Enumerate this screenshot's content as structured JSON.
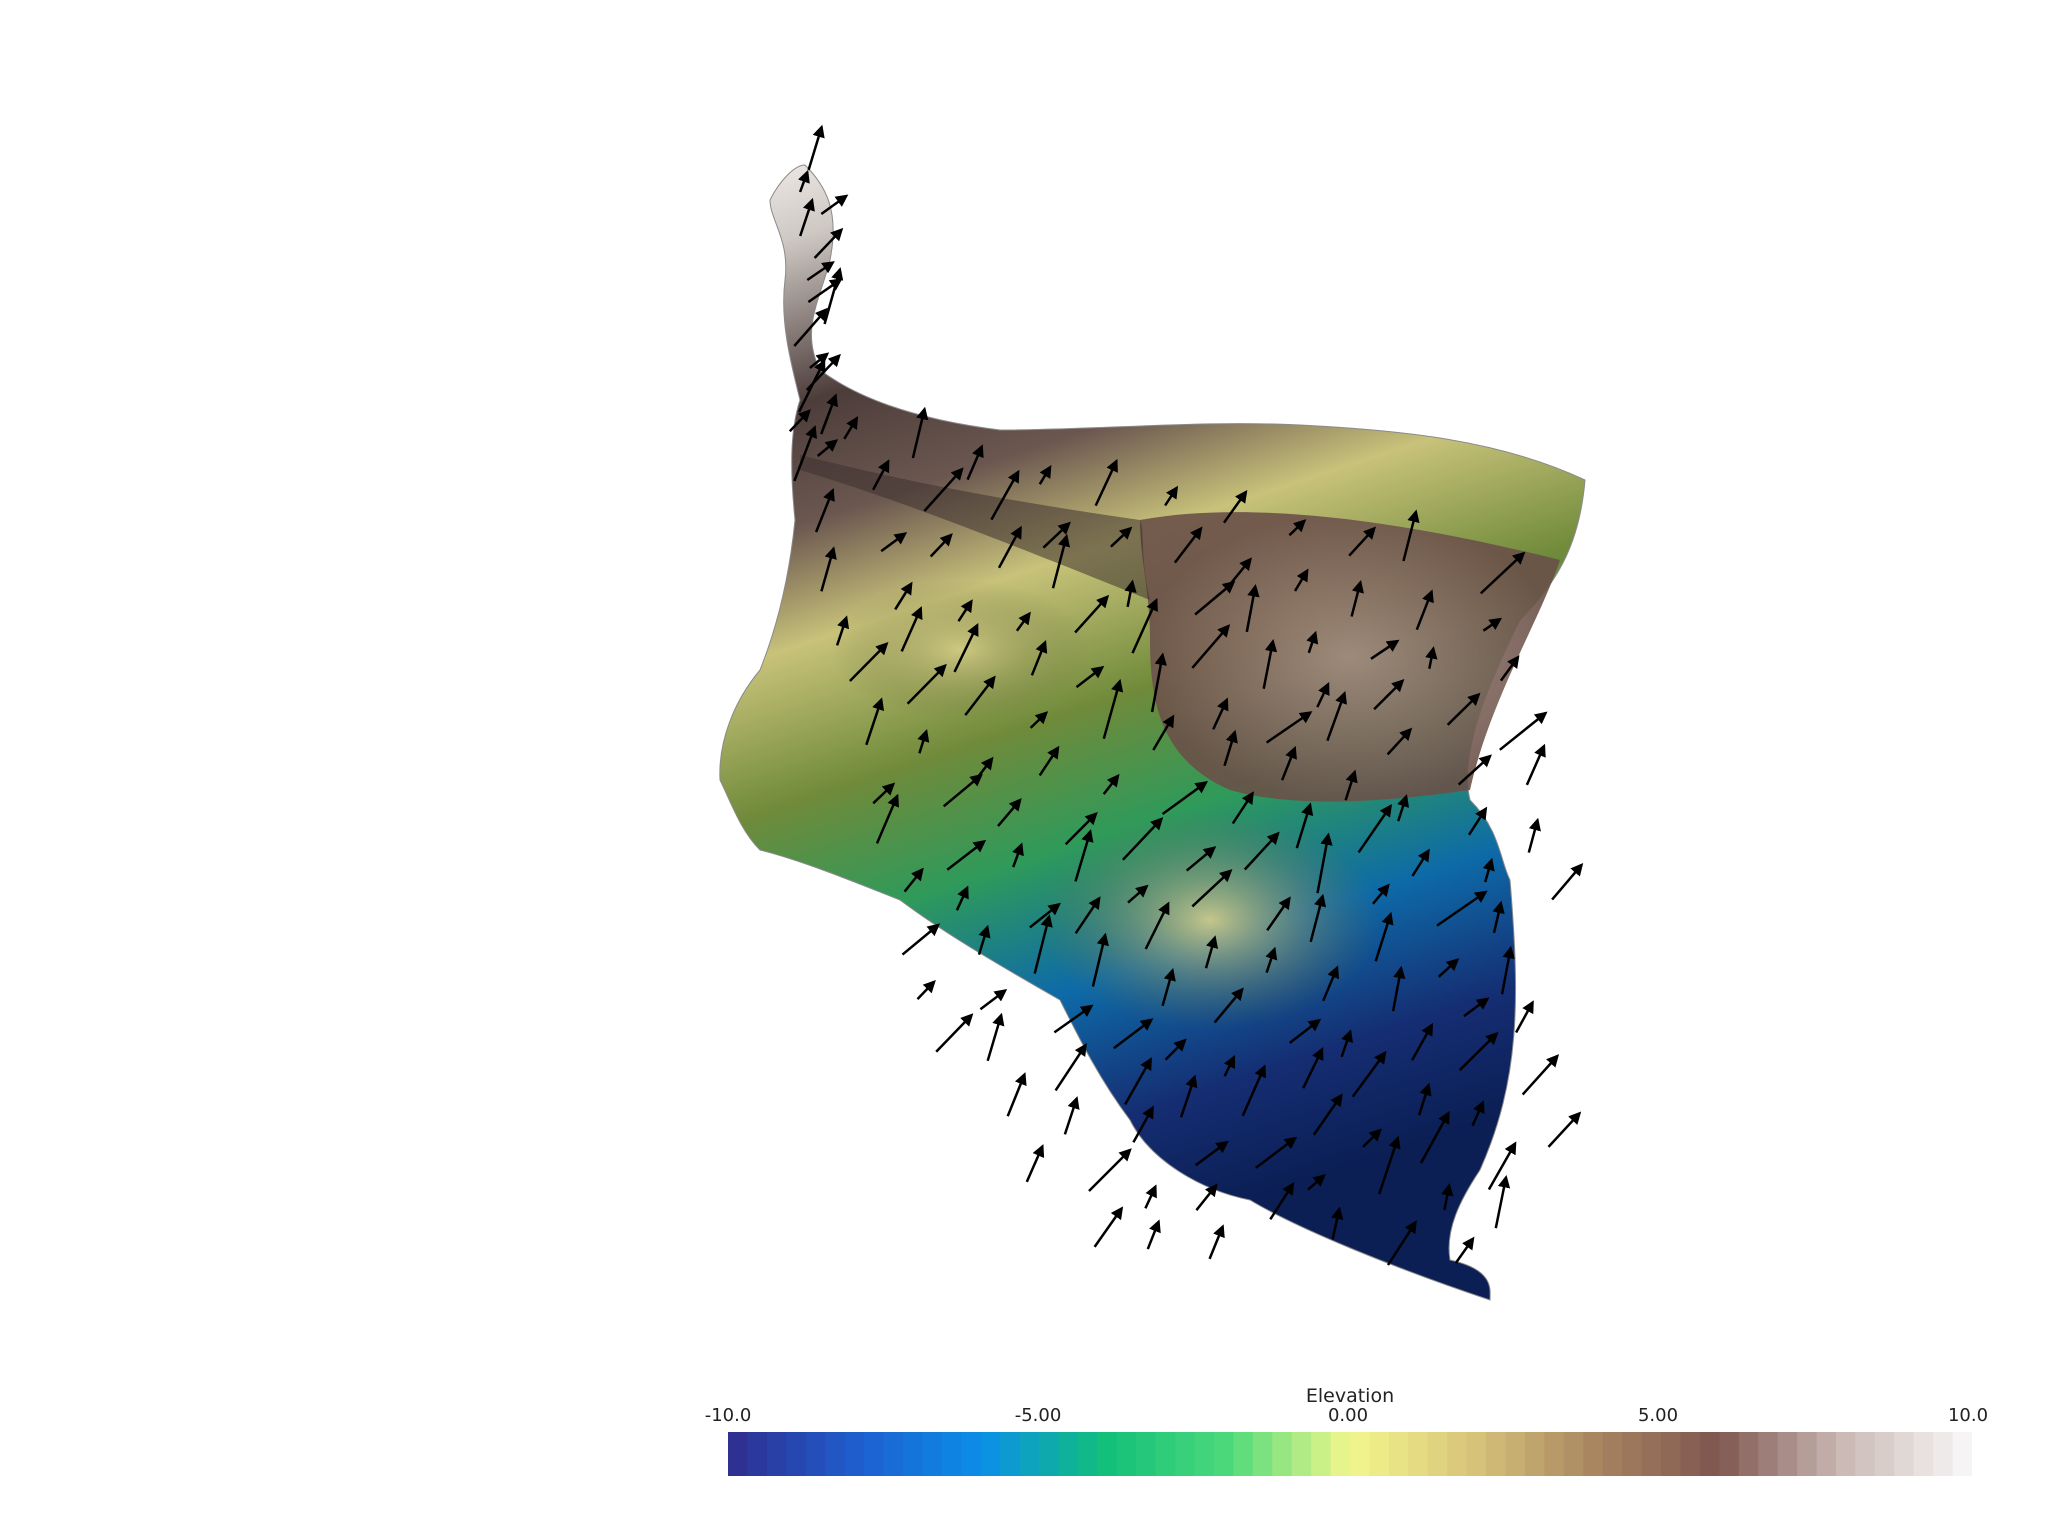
{
  "scene": {
    "description_free": true,
    "colors": {
      "background": "#ffffff",
      "arrow": "#000000"
    }
  },
  "colorbar": {
    "title": "Elevation",
    "ticks": [
      "-10.0",
      "-5.00",
      "0.00",
      "5.00",
      "10.0"
    ],
    "range": [
      -10,
      10
    ],
    "stops": [
      "#2e3192",
      "#1e5fd0",
      "#0a8fe8",
      "#12c07a",
      "#4cd97a",
      "#f2f78c",
      "#d8c47a",
      "#a88560",
      "#7f5650",
      "#c9b7b2",
      "#f6f4f4"
    ]
  }
}
